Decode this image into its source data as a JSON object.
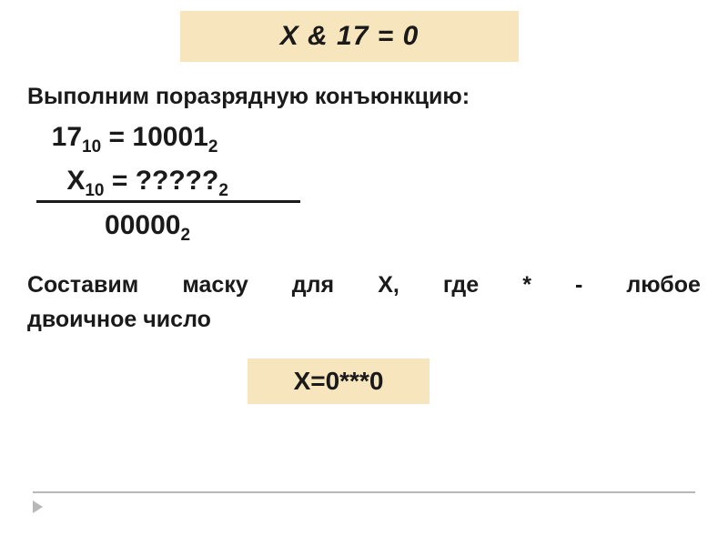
{
  "title": "X & 17 = 0",
  "intro": "Выполним поразрядную конъюнкцию:",
  "eq": {
    "row1_left": "17",
    "row1_sub": "10",
    "row1_eq": " = ",
    "row1_right": "10001",
    "row1_rsub": "2",
    "row2_left": "X",
    "row2_sub": "10",
    "row2_eq": " = ",
    "row2_right": "?????",
    "row2_rsub": "2",
    "row3_val": "00000",
    "row3_sub": "2"
  },
  "prompt_line1_words": [
    "Составим",
    "маску",
    "для",
    "X,",
    "где",
    "*",
    "-",
    "любое"
  ],
  "prompt_line2": "двоичное число",
  "mask": "X=0***0",
  "colors": {
    "highlight_bg": "#f7e5bd",
    "text": "#1a1a1a",
    "rule": "#b8b8b8",
    "page_bg": "#ffffff"
  }
}
